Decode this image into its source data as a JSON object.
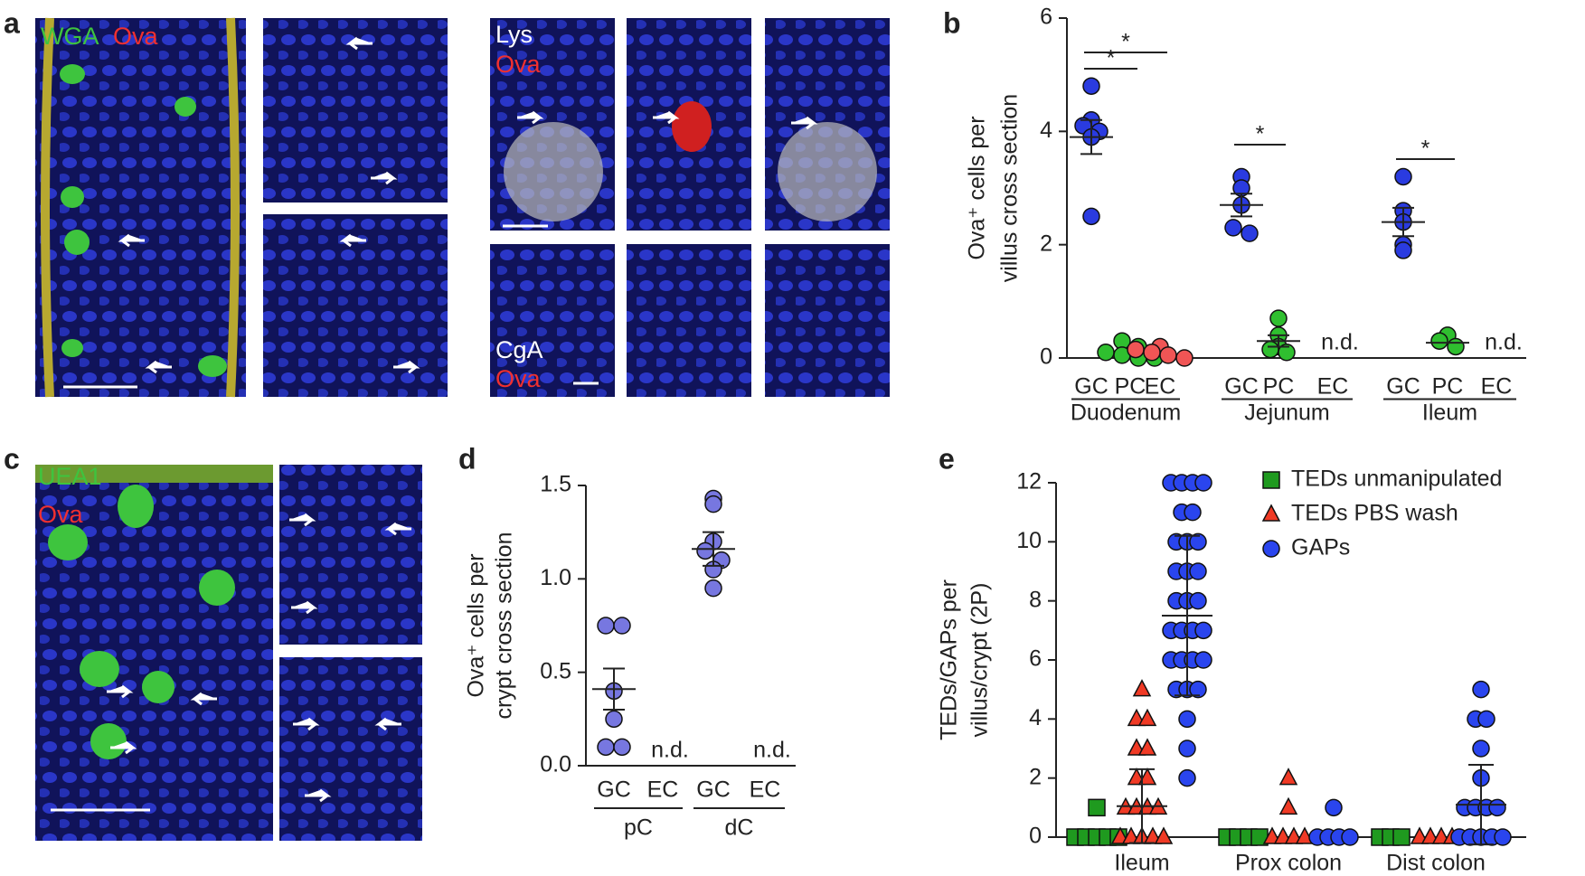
{
  "panel_labels": [
    "a",
    "b",
    "c",
    "d",
    "e"
  ],
  "images": {
    "a_main": [
      "WGA",
      "Ova"
    ],
    "a_lys": [
      "Lys",
      "Ova"
    ],
    "a_cga": [
      "CgA",
      "Ova"
    ],
    "c_main": [
      "UEA1",
      "Ova"
    ]
  },
  "chart_data": [
    {
      "type": "strip",
      "y_label": [
        "Ova⁺ cells per",
        "villus cross section"
      ],
      "ylim": [
        0,
        6
      ],
      "yticks": [
        0,
        2,
        4,
        6
      ],
      "categories": [
        "GC",
        "PC",
        "EC",
        "GC",
        "PC",
        "EC",
        "GC",
        "PC",
        "EC"
      ],
      "groups": [
        "Duodenum",
        "Jejunum",
        "Ileum"
      ],
      "colors": [
        "#2a3be0",
        "#2fbf2f",
        "#f05555",
        "#2a3be0",
        "#2fbf2f",
        "#f05555",
        "#2a3be0",
        "#2fbf2f",
        "#f05555"
      ],
      "values": [
        [
          4.8,
          4.2,
          4.1,
          4.0,
          3.9,
          2.5
        ],
        [
          0.3,
          0.2,
          0.1,
          0.05,
          0.0,
          0.0
        ],
        [
          0.2,
          0.15,
          0.1,
          0.05,
          0.0
        ],
        [
          3.2,
          3.0,
          2.7,
          2.3,
          2.2
        ],
        [
          0.7,
          0.4,
          0.2,
          0.15,
          0.1
        ],
        [],
        [
          3.2,
          2.6,
          2.4,
          2.0,
          1.9
        ],
        [
          0.4,
          0.3,
          0.2
        ],
        []
      ],
      "means": [
        3.9,
        null,
        null,
        2.7,
        0.3,
        null,
        2.4,
        0.27,
        null
      ],
      "errors": [
        0.3,
        null,
        null,
        0.2,
        0.1,
        null,
        0.25,
        null,
        null
      ],
      "annotations": [
        null,
        null,
        null,
        null,
        null,
        "n.d.",
        null,
        null,
        "n.d."
      ],
      "significance": [
        {
          "categories": [
            0,
            1
          ],
          "label": "*"
        },
        {
          "categories": [
            0,
            2
          ],
          "label": "*"
        },
        {
          "categories": [
            3,
            4
          ],
          "label": "*"
        },
        {
          "categories": [
            6,
            7
          ],
          "label": "*"
        }
      ]
    },
    {
      "type": "strip",
      "y_label": [
        "Ova⁺ cells per",
        "crypt cross section"
      ],
      "ylim": [
        0,
        1.5
      ],
      "yticks": [
        {
          "value": 0,
          "label": "0.0"
        },
        0.5,
        {
          "value": 1,
          "label": "1.0"
        },
        1.5
      ],
      "categories": [
        "GC",
        "EC",
        "GC",
        "EC"
      ],
      "groups": [
        "pC",
        "dC"
      ],
      "colors": [
        "#7777e0",
        "#7777e0",
        "#7777e0",
        "#7777e0"
      ],
      "values": [
        [
          0.75,
          0.75,
          0.4,
          0.25,
          0.1,
          0.1
        ],
        [],
        [
          1.43,
          1.4,
          1.2,
          1.15,
          1.1,
          1.05,
          0.95
        ],
        []
      ],
      "means": [
        0.41,
        null,
        1.16,
        null
      ],
      "errors": [
        0.11,
        null,
        0.09,
        null
      ],
      "annotations": [
        null,
        "n.d.",
        null,
        "n.d."
      ]
    },
    {
      "type": "strip_series",
      "y_label": [
        "TEDs/GAPs per",
        "villus/crypt (2P)"
      ],
      "ylim": [
        0,
        12
      ],
      "yticks": [
        0,
        2,
        4,
        6,
        8,
        10,
        12
      ],
      "categories": [
        "Ileum",
        "Prox colon",
        "Dist colon"
      ],
      "legend": "upper right",
      "series": [
        {
          "name": "TEDs unmanipulated",
          "color": "#1f9a1f",
          "marker": "square",
          "values": [
            [
              1,
              0,
              0,
              0,
              0,
              0
            ],
            [
              0,
              0,
              0,
              0
            ],
            [
              0,
              0,
              0
            ]
          ],
          "means": [
            null,
            null,
            null
          ],
          "errors": [
            null,
            null,
            null
          ]
        },
        {
          "name": "TEDs PBS wash",
          "color": "#f03a25",
          "marker": "triangle",
          "values": [
            [
              5,
              4,
              4,
              3,
              3,
              2,
              2,
              1,
              1,
              1,
              1,
              0,
              0,
              0,
              0,
              0
            ],
            [
              2,
              1,
              0,
              0,
              0,
              0
            ],
            [
              0,
              0,
              0,
              0
            ]
          ],
          "means": [
            1.05,
            null,
            null
          ],
          "errors": [
            1.25,
            null,
            null
          ]
        },
        {
          "name": "GAPs",
          "color": "#2a45ee",
          "marker": "circle",
          "values": [
            [
              12,
              12,
              12,
              12,
              11,
              11,
              10,
              10,
              10,
              9,
              9,
              9,
              8,
              8,
              8,
              7,
              7,
              7,
              7,
              6,
              6,
              6,
              6,
              5,
              5,
              5,
              4,
              3,
              2
            ],
            [
              1,
              0,
              0,
              0,
              0
            ],
            [
              5,
              4,
              4,
              3,
              2,
              1,
              1,
              1,
              1,
              0,
              0,
              0,
              0,
              0
            ]
          ],
          "means": [
            7.5,
            null,
            1.1
          ],
          "errors": [
            2.7,
            null,
            1.35
          ]
        }
      ]
    }
  ]
}
